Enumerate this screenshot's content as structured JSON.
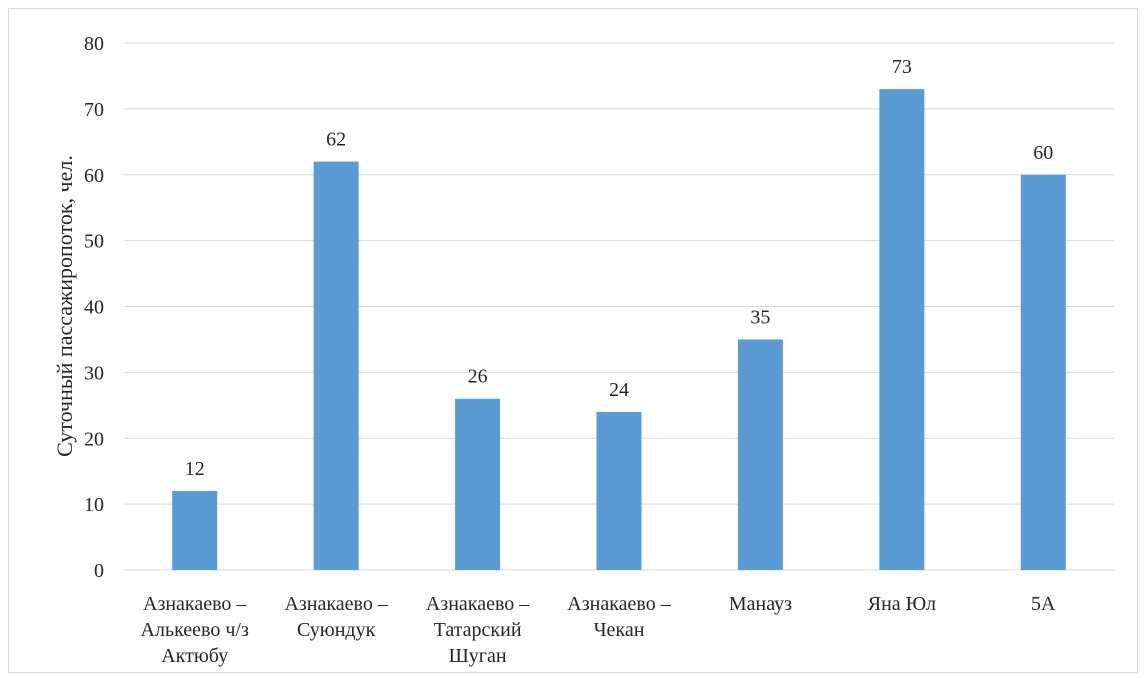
{
  "chart_data": {
    "type": "bar",
    "title": "",
    "xlabel": "",
    "ylabel": "Суточный пассажиропоток, чел.",
    "ylim": [
      0,
      80
    ],
    "y_ticks": [
      0,
      10,
      20,
      30,
      40,
      50,
      60,
      70,
      80
    ],
    "grid": true,
    "categories": [
      "Азнакаево – Алькеево ч/з Актюбу",
      "Азнакаево – Суюндук",
      "Азнакаево – Татарский Шуган",
      "Азнакаево – Чекан",
      "Манауз",
      "Яна Юл",
      "5А"
    ],
    "category_lines": [
      [
        "Азнакаево –",
        "Алькеево ч/з",
        "Актюбу"
      ],
      [
        "Азнакаево –",
        "Суюндук"
      ],
      [
        "Азнакаево –",
        "Татарский",
        "Шуган"
      ],
      [
        "Азнакаево –",
        "Чекан"
      ],
      [
        "Манауз"
      ],
      [
        "Яна Юл"
      ],
      [
        "5А"
      ]
    ],
    "values": [
      12,
      62,
      26,
      24,
      35,
      73,
      60
    ],
    "bar_color": "#5b9bd5"
  }
}
